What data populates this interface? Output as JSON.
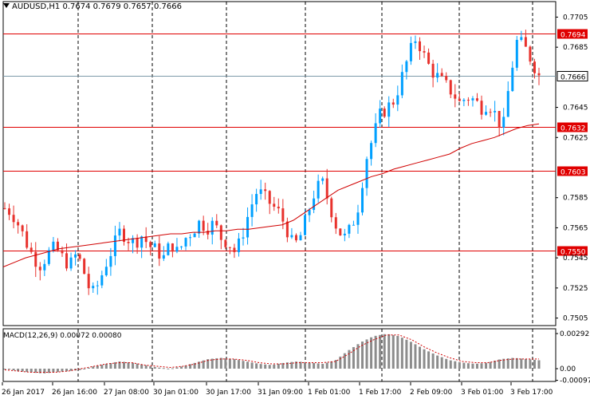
{
  "header": {
    "symbol_line": "AUDUSD,H1  0.7674 0.7679 0.7657 0.7666"
  },
  "macd": {
    "label": "MACD(12,26,9) 0.00072 0.00080",
    "ticks": [
      "0.00292",
      "0.00",
      "-0.00097"
    ]
  },
  "colors": {
    "bull": "#00a0ff",
    "bear": "#e8322d",
    "hline": "#e00000",
    "ma": "#d00000",
    "price_line": "#7d9aa8",
    "grid": "#000000"
  },
  "chart_data": {
    "type": "candlestick",
    "title": "",
    "symbol": "AUDUSD",
    "timeframe": "H1",
    "ylim": [
      0.75,
      0.771
    ],
    "y_ticks": [
      "0.7705",
      "0.7685",
      "0.7645",
      "0.7625",
      "0.7585",
      "0.7565",
      "0.7545",
      "0.7525",
      "0.7505"
    ],
    "x_ticks": [
      "26 Jan 2017",
      "26 Jan 16:00",
      "27 Jan 08:00",
      "30 Jan 01:00",
      "30 Jan 17:00",
      "31 Jan 09:00",
      "1 Feb 01:00",
      "1 Feb 17:00",
      "2 Feb 09:00",
      "3 Feb 01:00",
      "3 Feb 17:00"
    ],
    "horizontal_levels": [
      "0.7694",
      "0.7632",
      "0.7603",
      "0.7550"
    ],
    "current_price": "0.7666",
    "close_path": [
      0.7578,
      0.7575,
      0.7566,
      0.7555,
      0.7545,
      0.754,
      0.7548,
      0.7552,
      0.7545,
      0.754,
      0.7548,
      0.7535,
      0.752,
      0.7528,
      0.7541,
      0.7552,
      0.7563,
      0.7558,
      0.7555,
      0.756,
      0.7553,
      0.755,
      0.7545,
      0.7555,
      0.7548,
      0.7558,
      0.7563,
      0.7569,
      0.7565,
      0.7568,
      0.7558,
      0.7555,
      0.7548,
      0.7562,
      0.7578,
      0.759,
      0.7585,
      0.758,
      0.7575,
      0.7565,
      0.7552,
      0.756,
      0.7575,
      0.759,
      0.7595,
      0.758,
      0.7565,
      0.7558,
      0.7565,
      0.758,
      0.761,
      0.7625,
      0.764,
      0.7645,
      0.765,
      0.7665,
      0.768,
      0.7692,
      0.768,
      0.767,
      0.7665,
      0.766,
      0.7655,
      0.7648,
      0.7652,
      0.765,
      0.7645,
      0.7648,
      0.764,
      0.763,
      0.7665,
      0.769,
      0.7685,
      0.7676,
      0.7666
    ],
    "ma_path": [
      0.7539,
      0.7542,
      0.7545,
      0.7547,
      0.7549,
      0.7551,
      0.7552,
      0.7553,
      0.7554,
      0.7555,
      0.7556,
      0.7557,
      0.7558,
      0.7559,
      0.756,
      0.7561,
      0.7561,
      0.7562,
      0.7562,
      0.7563,
      0.7563,
      0.7564,
      0.7564,
      0.7565,
      0.7566,
      0.7567,
      0.757,
      0.7575,
      0.758,
      0.7585,
      0.759,
      0.7593,
      0.7596,
      0.7599,
      0.7601,
      0.7604,
      0.7606,
      0.7608,
      0.761,
      0.7612,
      0.7614,
      0.7618,
      0.7621,
      0.7623,
      0.7625,
      0.7628,
      0.7631,
      0.7633,
      0.7634
    ],
    "macd_hist_path": [
      0.0,
      -0.0002,
      -0.0003,
      -0.0004,
      -0.0003,
      -0.0002,
      -0.0001,
      0.0002,
      0.0004,
      0.0006,
      0.0005,
      0.0003,
      0.0001,
      0.0,
      0.0002,
      0.0005,
      0.0008,
      0.0009,
      0.0008,
      0.0006,
      0.0004,
      0.0003,
      0.0005,
      0.0006,
      0.0005,
      0.0004,
      0.0007,
      0.0015,
      0.0022,
      0.0027,
      0.0029,
      0.0027,
      0.0022,
      0.0016,
      0.0011,
      0.0007,
      0.0005,
      0.0004,
      0.0005,
      0.0008,
      0.0009,
      0.0008,
      0.0007
    ],
    "macd_signal_path": [
      -0.0001,
      -0.0002,
      -0.0003,
      -0.0003,
      -0.0003,
      -0.0002,
      0.0,
      0.0002,
      0.0004,
      0.0005,
      0.0005,
      0.0003,
      0.0002,
      0.0001,
      0.0002,
      0.0004,
      0.0007,
      0.0008,
      0.0008,
      0.0007,
      0.0005,
      0.0004,
      0.0004,
      0.0005,
      0.0005,
      0.0005,
      0.0006,
      0.0012,
      0.0019,
      0.0024,
      0.0028,
      0.0028,
      0.0024,
      0.0018,
      0.0013,
      0.0009,
      0.0006,
      0.0005,
      0.0005,
      0.0007,
      0.0008,
      0.0008,
      0.0008
    ]
  }
}
